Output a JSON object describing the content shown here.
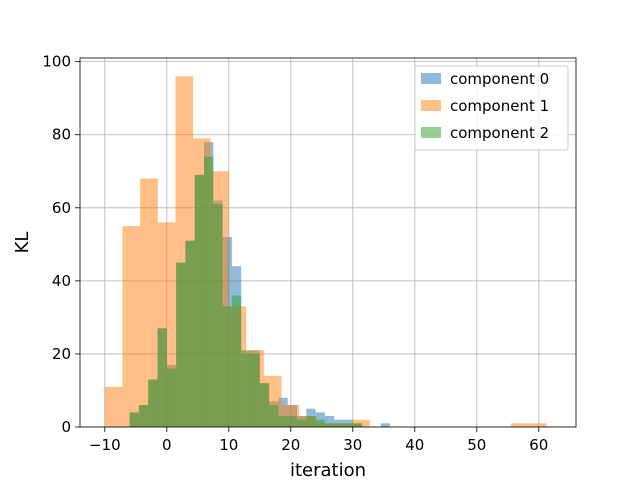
{
  "chart_data": {
    "type": "bar",
    "subtype": "overlapping-histogram",
    "title": "",
    "xlabel": "iteration",
    "ylabel": "KL",
    "xlim": [
      -14,
      66
    ],
    "ylim": [
      0,
      101
    ],
    "xticks": [
      -10,
      0,
      10,
      20,
      30,
      40,
      50,
      60
    ],
    "yticks": [
      0,
      20,
      40,
      60,
      80,
      100
    ],
    "grid": true,
    "legend": {
      "placement": "top-right"
    },
    "series": [
      {
        "name": "component 0",
        "color": "#1f77b4",
        "alpha": 0.5,
        "bins": [
          [
            -6,
            -4.5,
            4
          ],
          [
            -4.5,
            -3,
            6
          ],
          [
            -3,
            -1.5,
            13
          ],
          [
            -1.5,
            0,
            27
          ],
          [
            0,
            1.5,
            17
          ],
          [
            1.5,
            3,
            45
          ],
          [
            3,
            4.5,
            51
          ],
          [
            4.5,
            6,
            69
          ],
          [
            6,
            7.5,
            78
          ],
          [
            7.5,
            9,
            62
          ],
          [
            9,
            10.5,
            52
          ],
          [
            10.5,
            12,
            44
          ],
          [
            12,
            13.5,
            20
          ],
          [
            13.5,
            15,
            21
          ],
          [
            15,
            16.5,
            12
          ],
          [
            16.5,
            18,
            7
          ],
          [
            18,
            19.5,
            8
          ],
          [
            19.5,
            21,
            6
          ],
          [
            21,
            22.5,
            3
          ],
          [
            22.5,
            24,
            5
          ],
          [
            24,
            25.5,
            4
          ],
          [
            25.5,
            27,
            3
          ],
          [
            27,
            28.5,
            2
          ],
          [
            28.5,
            30,
            2
          ],
          [
            30,
            31.5,
            1
          ],
          [
            34.5,
            36,
            1
          ]
        ]
      },
      {
        "name": "component 1",
        "color": "#ff7f0e",
        "alpha": 0.5,
        "bins": [
          [
            -10,
            -7.15,
            11
          ],
          [
            -7.15,
            -4.3,
            55
          ],
          [
            -4.3,
            -1.45,
            68
          ],
          [
            -1.45,
            1.4,
            56
          ],
          [
            1.4,
            4.25,
            96
          ],
          [
            4.25,
            7.1,
            79
          ],
          [
            7.1,
            9.95,
            70
          ],
          [
            9.95,
            12.8,
            33
          ],
          [
            12.8,
            15.65,
            21
          ],
          [
            15.65,
            18.5,
            14
          ],
          [
            18.5,
            21.35,
            6
          ],
          [
            21.35,
            24.2,
            3
          ],
          [
            24.2,
            27.05,
            1
          ],
          [
            27.05,
            29.9,
            1
          ],
          [
            29.9,
            32.75,
            2
          ],
          [
            32.75,
            35.6,
            0
          ],
          [
            35.6,
            38.45,
            0
          ],
          [
            38.45,
            41.3,
            0
          ],
          [
            41.3,
            44.15,
            0
          ],
          [
            44.15,
            47,
            0
          ],
          [
            47,
            49.85,
            0
          ],
          [
            49.85,
            52.7,
            0
          ],
          [
            52.7,
            55.55,
            0
          ],
          [
            55.55,
            58.4,
            1
          ],
          [
            58.4,
            61.25,
            1
          ]
        ]
      },
      {
        "name": "component 2",
        "color": "#2ca02c",
        "alpha": 0.5,
        "bins": [
          [
            -6,
            -4.5,
            4
          ],
          [
            -4.5,
            -3,
            6
          ],
          [
            -3,
            -1.5,
            13
          ],
          [
            -1.5,
            0,
            27
          ],
          [
            0,
            1.5,
            16
          ],
          [
            1.5,
            3,
            45
          ],
          [
            3,
            4.5,
            51
          ],
          [
            4.5,
            6,
            69
          ],
          [
            6,
            7.5,
            74
          ],
          [
            7.5,
            9,
            61
          ],
          [
            9,
            10.5,
            33
          ],
          [
            10.5,
            12,
            36
          ],
          [
            12,
            13.5,
            21
          ],
          [
            13.5,
            15,
            20
          ],
          [
            15,
            16.5,
            12
          ],
          [
            16.5,
            18,
            6
          ],
          [
            18,
            19.5,
            3
          ],
          [
            19.5,
            21,
            3
          ],
          [
            21,
            22.5,
            2
          ],
          [
            22.5,
            24,
            3
          ],
          [
            24,
            25.5,
            2
          ],
          [
            25.5,
            27,
            1
          ],
          [
            27,
            28.5,
            1
          ],
          [
            28.5,
            30,
            1
          ],
          [
            30,
            31.5,
            1
          ]
        ]
      }
    ]
  }
}
